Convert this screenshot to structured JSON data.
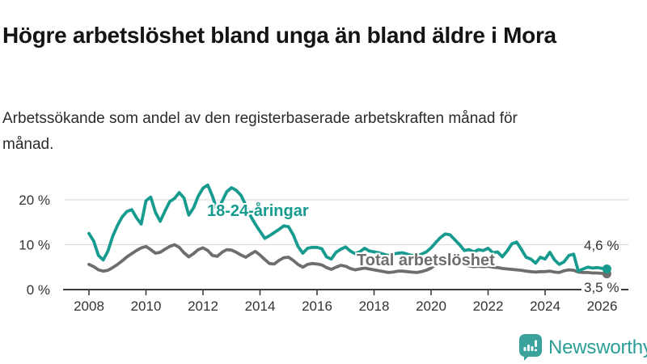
{
  "chart_data": {
    "type": "line",
    "title": "Högre arbetslöshet bland unga än bland äldre i Mora",
    "subtitle": "Arbetssökande som andel av den registerbaserade arbetskraften månad för månad.",
    "unit": "%",
    "grid": "horizontal",
    "legend": "inline-labels",
    "x_start": 2008,
    "points_per_year": 6,
    "xlim": [
      2007.15,
      2026.92
    ],
    "ylim": [
      0,
      23.5
    ],
    "yticks": [
      {
        "value": 0,
        "label": "0 %"
      },
      {
        "value": 10,
        "label": "10 %"
      },
      {
        "value": 20,
        "label": "20 %"
      }
    ],
    "xticks": [
      {
        "value": 2008,
        "label": "2008"
      },
      {
        "value": 2010,
        "label": "2010"
      },
      {
        "value": 2012,
        "label": "2012"
      },
      {
        "value": 2014,
        "label": "2014"
      },
      {
        "value": 2016,
        "label": "2016"
      },
      {
        "value": 2018,
        "label": "2018"
      },
      {
        "value": 2020,
        "label": "2020"
      },
      {
        "value": 2022,
        "label": "2022"
      },
      {
        "value": 2024,
        "label": "2024"
      },
      {
        "value": 2026,
        "label": "2026"
      }
    ],
    "series": [
      {
        "name": "18-24-åringar",
        "color": "#179b8e",
        "end_value": 4.6,
        "end_label": "4,6 %",
        "values": [
          12.5,
          10.8,
          7.6,
          6.6,
          8.6,
          11.9,
          14.3,
          16.2,
          17.4,
          17.8,
          16.0,
          14.6,
          19.8,
          20.6,
          17.2,
          15.2,
          17.5,
          19.6,
          20.3,
          21.6,
          20.4,
          16.6,
          18.2,
          20.8,
          22.6,
          23.3,
          20.8,
          17.6,
          19.6,
          21.8,
          22.7,
          22.1,
          21.0,
          18.8,
          16.4,
          14.6,
          13.0,
          11.4,
          12.0,
          12.7,
          13.4,
          14.2,
          14.0,
          12.2,
          9.6,
          8.1,
          9.2,
          9.4,
          9.4,
          9.1,
          7.3,
          6.8,
          8.3,
          9.0,
          9.5,
          8.6,
          8.0,
          8.4,
          9.2,
          8.6,
          8.4,
          8.2,
          7.9,
          7.6,
          7.9,
          8.1,
          8.2,
          7.9,
          7.6,
          7.4,
          7.9,
          8.4,
          9.3,
          10.5,
          11.6,
          12.4,
          12.2,
          11.1,
          10.0,
          8.7,
          8.9,
          8.4,
          8.9,
          8.7,
          9.2,
          8.2,
          8.4,
          7.3,
          8.6,
          10.2,
          10.6,
          9.0,
          7.2,
          6.8,
          5.9,
          7.2,
          6.8,
          8.3,
          6.6,
          5.6,
          6.2,
          7.6,
          7.9,
          4.1,
          4.6,
          5.0,
          4.8,
          4.9,
          4.7,
          4.6
        ]
      },
      {
        "name": "Total arbetslöshet",
        "color": "#6e6e6e",
        "end_value": 3.5,
        "end_label": "3,5 %",
        "values": [
          5.6,
          5.1,
          4.4,
          4.1,
          4.3,
          4.9,
          5.6,
          6.4,
          7.3,
          8.0,
          8.7,
          9.3,
          9.6,
          8.9,
          8.1,
          8.3,
          9.0,
          9.6,
          10.0,
          9.4,
          8.2,
          7.3,
          8.0,
          8.9,
          9.3,
          8.7,
          7.6,
          7.4,
          8.3,
          8.9,
          8.8,
          8.3,
          7.7,
          7.2,
          7.9,
          8.5,
          7.7,
          6.7,
          5.8,
          5.7,
          6.5,
          7.1,
          7.2,
          6.5,
          5.6,
          5.0,
          5.6,
          5.8,
          5.7,
          5.5,
          4.9,
          4.5,
          5.0,
          5.4,
          5.2,
          4.7,
          4.4,
          4.6,
          4.8,
          4.6,
          4.4,
          4.2,
          4.0,
          3.8,
          3.9,
          4.1,
          4.1,
          4.0,
          3.9,
          3.8,
          4.0,
          4.3,
          4.8,
          5.6,
          6.3,
          6.8,
          6.7,
          6.3,
          5.9,
          5.5,
          5.3,
          5.1,
          5.2,
          5.1,
          5.2,
          5.0,
          4.9,
          4.7,
          4.6,
          4.5,
          4.4,
          4.3,
          4.1,
          4.0,
          3.9,
          4.0,
          4.0,
          4.1,
          3.9,
          3.8,
          4.2,
          4.4,
          4.3,
          3.9,
          3.8,
          3.8,
          3.7,
          3.7,
          3.6,
          3.5
        ]
      }
    ],
    "colors": {
      "grid": "#dddddd",
      "axis": "#3c3c3c",
      "tick_text": "#333333"
    }
  },
  "footer": {
    "brand": "Newsworthy",
    "logo_color": "#3ba39c",
    "wordmark_color": "#2c9e96"
  }
}
